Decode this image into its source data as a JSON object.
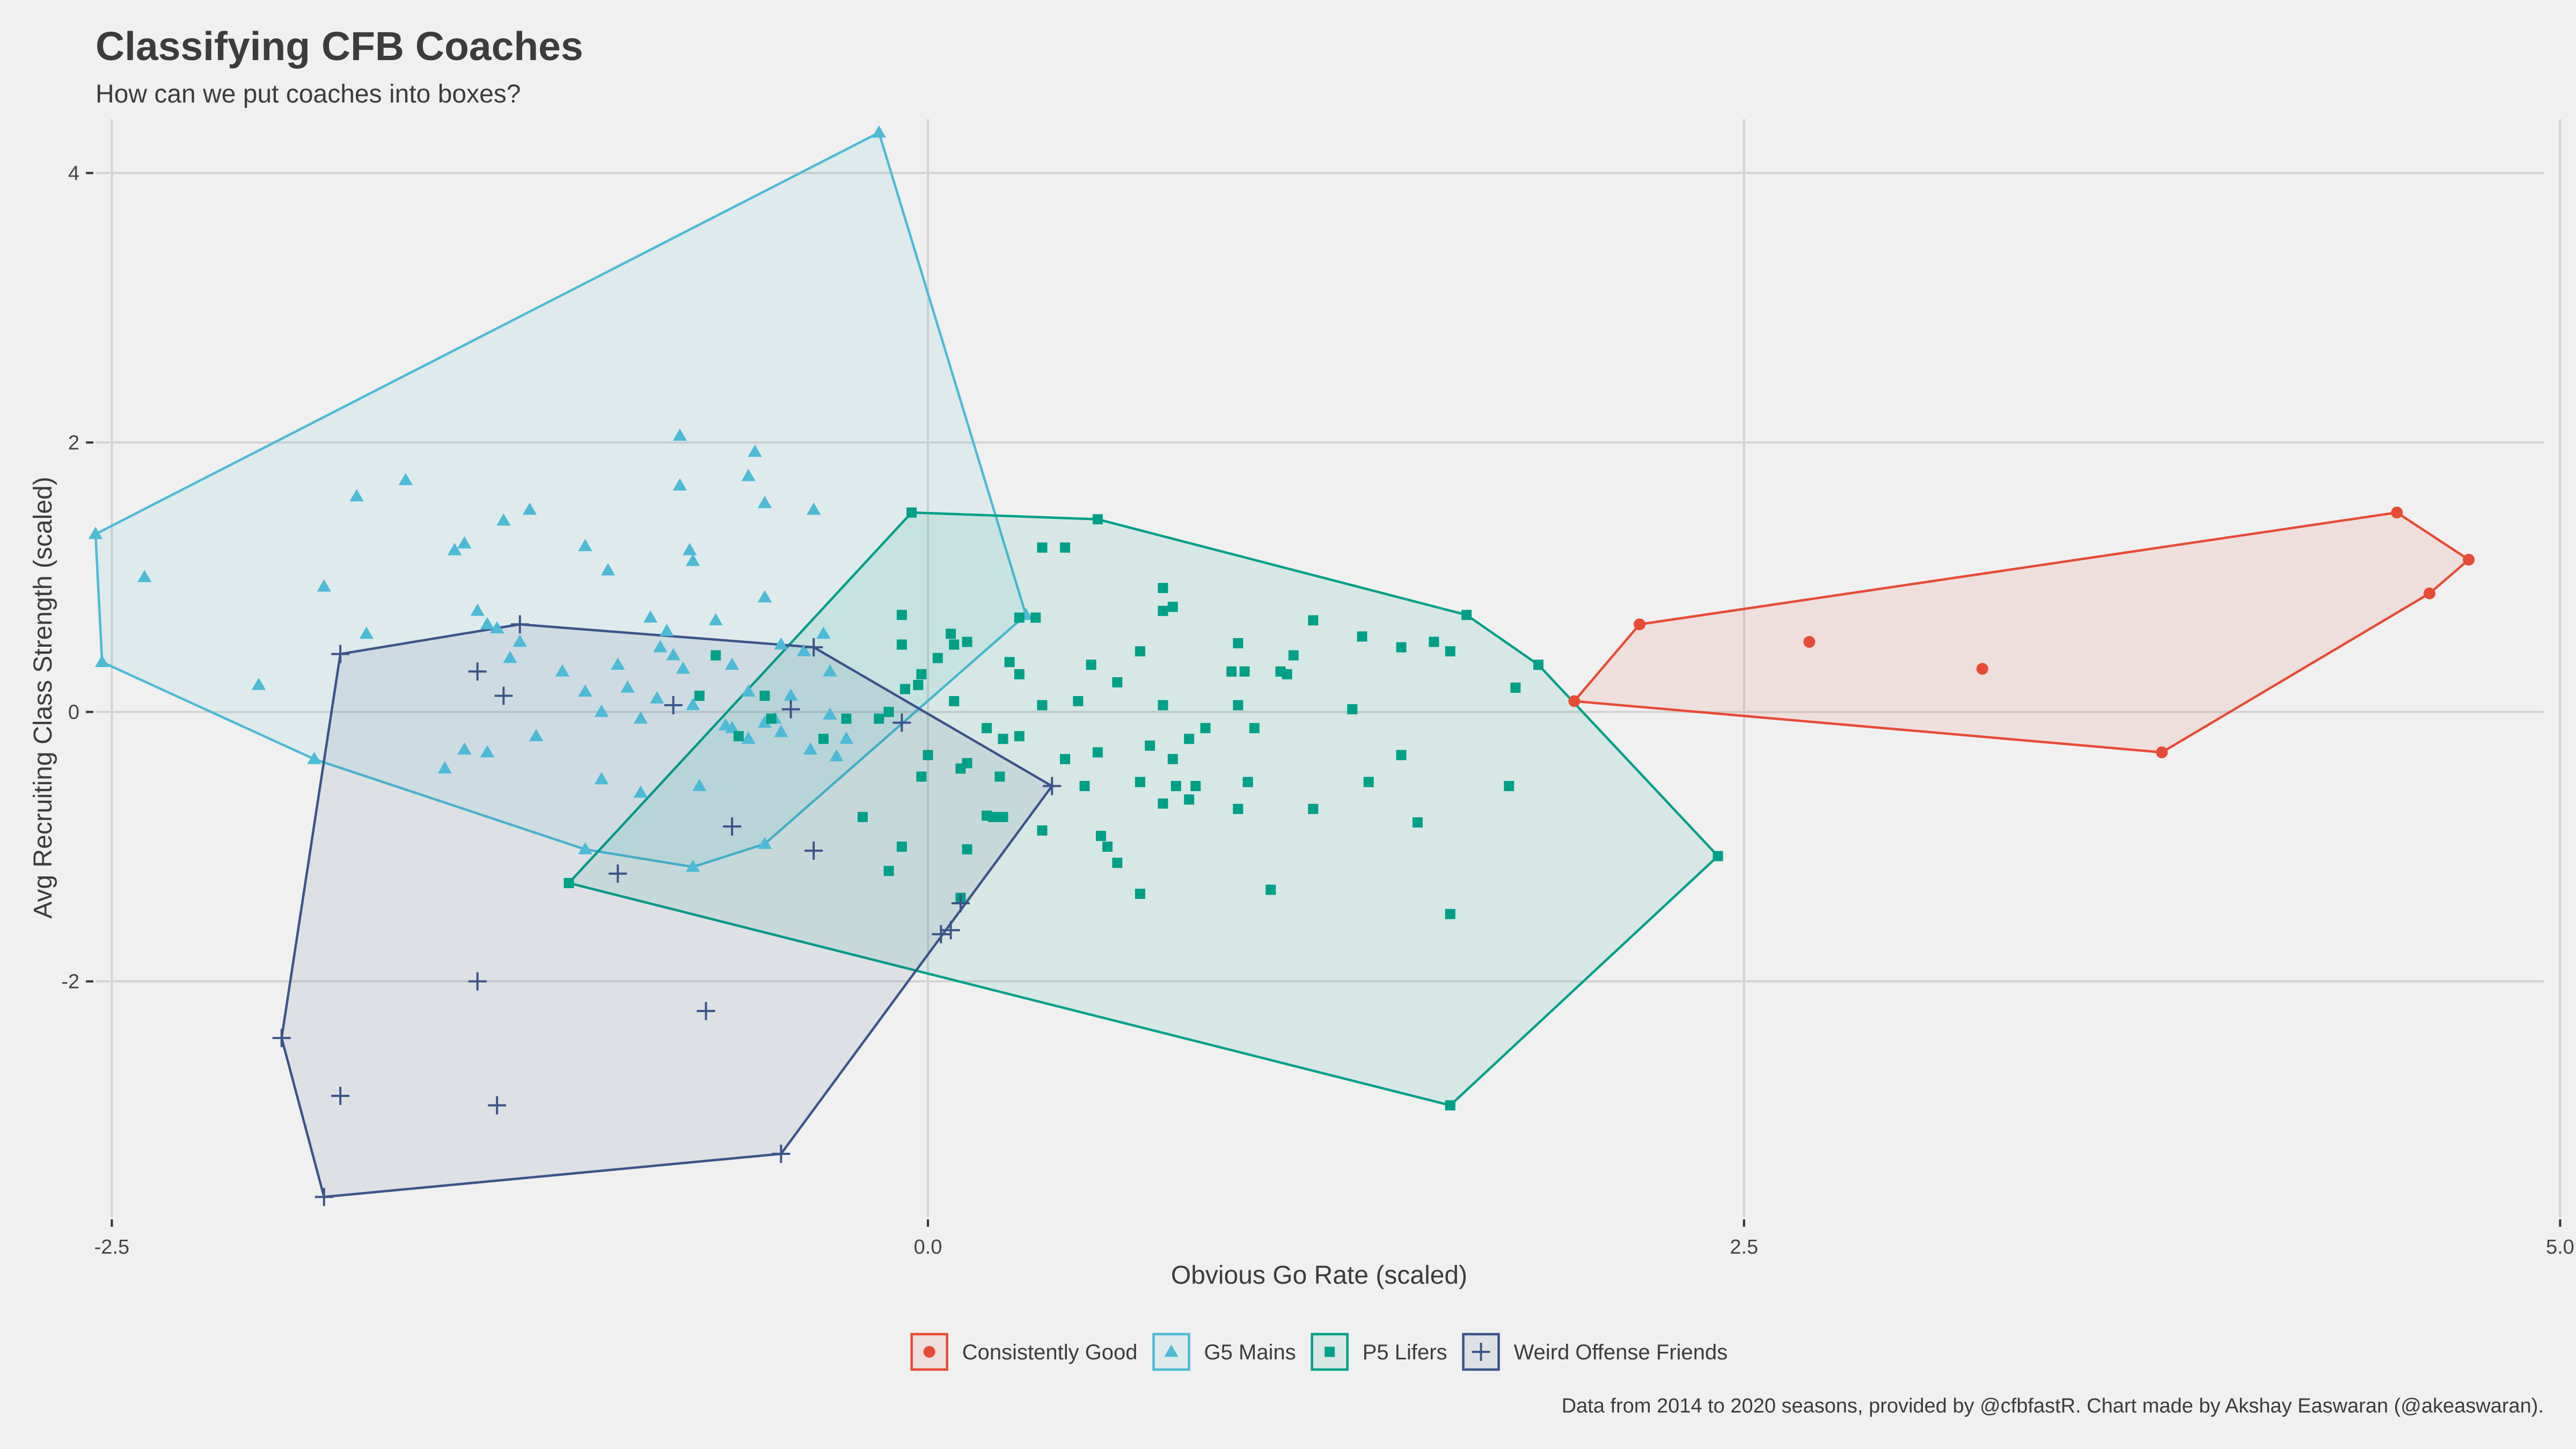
{
  "title": "Classifying CFB Coaches",
  "subtitle": "How can we put coaches into boxes?",
  "caption": "Data from 2014 to 2020 seasons, provided by @cfbfastR. Chart made by Akshay Easwaran (@akeaswaran).",
  "chart_data": {
    "type": "scatter",
    "title": "Classifying CFB Coaches",
    "subtitle": "How can we put coaches into boxes?",
    "xlabel": "Obvious Go Rate (scaled)",
    "ylabel": "Avg Recruiting Class Strength (scaled)",
    "xlim": [
      -2.55,
      4.95
    ],
    "ylim": [
      -3.75,
      4.4
    ],
    "x_ticks": [
      -2.5,
      0.0,
      2.5,
      5.0
    ],
    "x_tick_labels": [
      "-2.5",
      "0.0",
      "2.5",
      "5.0"
    ],
    "y_ticks": [
      -2,
      0,
      2,
      4
    ],
    "y_tick_labels": [
      "-2",
      "0",
      "2",
      "4"
    ],
    "grid": true,
    "legend_position": "bottom",
    "series": [
      {
        "name": "Consistently Good",
        "color": "#e64b35",
        "shape": "circle",
        "points": [
          [
            2.18,
            0.65
          ],
          [
            2.7,
            0.52
          ],
          [
            3.23,
            0.32
          ],
          [
            3.78,
            -0.3
          ],
          [
            4.5,
            1.48
          ],
          [
            4.6,
            0.88
          ],
          [
            4.72,
            1.13
          ],
          [
            1.98,
            0.08
          ]
        ],
        "hull": [
          [
            1.98,
            0.08
          ],
          [
            2.18,
            0.65
          ],
          [
            4.5,
            1.48
          ],
          [
            4.72,
            1.13
          ],
          [
            4.6,
            0.88
          ],
          [
            3.78,
            -0.3
          ]
        ]
      },
      {
        "name": "G5 Mains",
        "color": "#4dbbd5",
        "shape": "triangle",
        "points": [
          [
            -2.55,
            1.32
          ],
          [
            -2.53,
            0.37
          ],
          [
            -0.15,
            4.3
          ],
          [
            0.3,
            0.72
          ],
          [
            -0.5,
            -0.98
          ],
          [
            -0.72,
            -1.15
          ],
          [
            -1.05,
            -1.02
          ],
          [
            -1.88,
            -0.35
          ],
          [
            -2.4,
            1.0
          ],
          [
            -2.05,
            0.2
          ],
          [
            -1.85,
            0.93
          ],
          [
            -1.75,
            1.6
          ],
          [
            -1.6,
            1.72
          ],
          [
            -1.72,
            0.58
          ],
          [
            -1.45,
            1.2
          ],
          [
            -1.42,
            1.25
          ],
          [
            -1.38,
            0.75
          ],
          [
            -1.3,
            1.42
          ],
          [
            -1.22,
            1.5
          ],
          [
            -1.05,
            1.23
          ],
          [
            -0.98,
            1.05
          ],
          [
            -0.85,
            0.7
          ],
          [
            -0.8,
            0.6
          ],
          [
            -0.76,
            2.05
          ],
          [
            -0.76,
            1.68
          ],
          [
            -0.73,
            1.2
          ],
          [
            -0.72,
            1.12
          ],
          [
            -0.55,
            1.75
          ],
          [
            -0.53,
            1.93
          ],
          [
            -0.5,
            1.55
          ],
          [
            -0.35,
            1.5
          ],
          [
            -0.5,
            0.85
          ],
          [
            -0.65,
            0.68
          ],
          [
            -0.6,
            0.35
          ],
          [
            -0.95,
            0.35
          ],
          [
            -1.0,
            -0.5
          ],
          [
            -0.88,
            -0.6
          ],
          [
            -0.7,
            -0.55
          ],
          [
            -1.12,
            0.3
          ],
          [
            -1.2,
            -0.18
          ],
          [
            -1.25,
            0.52
          ],
          [
            -1.35,
            -0.3
          ],
          [
            -1.42,
            -0.28
          ],
          [
            -1.48,
            -0.42
          ],
          [
            -1.32,
            0.62
          ],
          [
            -1.28,
            0.4
          ],
          [
            -1.35,
            0.65
          ],
          [
            -0.92,
            0.18
          ],
          [
            -0.75,
            0.32
          ],
          [
            -0.82,
            0.48
          ],
          [
            -0.78,
            0.42
          ],
          [
            -1.05,
            0.15
          ],
          [
            -0.25,
            -0.2
          ],
          [
            -0.28,
            -0.33
          ],
          [
            -0.36,
            -0.28
          ],
          [
            -0.45,
            -0.15
          ],
          [
            -0.55,
            -0.2
          ],
          [
            -0.6,
            -0.12
          ],
          [
            -0.5,
            -0.08
          ],
          [
            -0.32,
            0.58
          ],
          [
            -0.45,
            0.5
          ],
          [
            -0.3,
            0.3
          ],
          [
            -0.38,
            0.45
          ],
          [
            -0.55,
            0.15
          ],
          [
            -0.72,
            0.05
          ],
          [
            -0.83,
            0.1
          ],
          [
            -0.88,
            -0.05
          ],
          [
            -1.0,
            0.0
          ],
          [
            -0.3,
            -0.02
          ],
          [
            -0.62,
            -0.1
          ],
          [
            -0.42,
            0.12
          ],
          [
            -0.47,
            -0.05
          ]
        ],
        "hull": [
          [
            -2.55,
            1.32
          ],
          [
            -0.15,
            4.3
          ],
          [
            0.3,
            0.72
          ],
          [
            -0.5,
            -0.98
          ],
          [
            -0.72,
            -1.15
          ],
          [
            -1.05,
            -1.02
          ],
          [
            -1.88,
            -0.35
          ],
          [
            -2.53,
            0.37
          ]
        ]
      },
      {
        "name": "P5 Lifers",
        "color": "#00a087",
        "shape": "square",
        "points": [
          [
            -0.05,
            1.48
          ],
          [
            0.52,
            1.43
          ],
          [
            1.65,
            0.72
          ],
          [
            1.87,
            0.35
          ],
          [
            2.42,
            -1.07
          ],
          [
            1.6,
            -2.92
          ],
          [
            -1.1,
            -1.27
          ],
          [
            -0.03,
            0.2
          ],
          [
            0.33,
            0.7
          ],
          [
            0.35,
            1.22
          ],
          [
            0.42,
            1.22
          ],
          [
            0.72,
            0.92
          ],
          [
            0.75,
            0.78
          ],
          [
            0.72,
            0.75
          ],
          [
            0.65,
            0.45
          ],
          [
            0.5,
            0.35
          ],
          [
            0.58,
            0.22
          ],
          [
            0.46,
            0.08
          ],
          [
            0.35,
            0.05
          ],
          [
            0.28,
            0.28
          ],
          [
            0.25,
            0.37
          ],
          [
            0.72,
            0.05
          ],
          [
            0.93,
            0.3
          ],
          [
            0.95,
            0.51
          ],
          [
            1.12,
            0.42
          ],
          [
            1.18,
            0.68
          ],
          [
            1.33,
            0.56
          ],
          [
            1.45,
            0.48
          ],
          [
            1.55,
            0.52
          ],
          [
            1.6,
            0.45
          ],
          [
            1.8,
            0.18
          ],
          [
            1.3,
            0.02
          ],
          [
            1.45,
            -0.32
          ],
          [
            1.35,
            -0.52
          ],
          [
            1.78,
            -0.55
          ],
          [
            1.5,
            -0.82
          ],
          [
            1.6,
            -1.5
          ],
          [
            1.05,
            -1.32
          ],
          [
            1.18,
            -0.72
          ],
          [
            0.95,
            -0.72
          ],
          [
            0.98,
            -0.52
          ],
          [
            0.82,
            -0.55
          ],
          [
            0.76,
            -0.55
          ],
          [
            0.8,
            -0.65
          ],
          [
            0.72,
            -0.68
          ],
          [
            0.65,
            -0.52
          ],
          [
            0.68,
            -0.25
          ],
          [
            0.75,
            -0.35
          ],
          [
            0.8,
            -0.2
          ],
          [
            0.85,
            -0.12
          ],
          [
            0.95,
            0.05
          ],
          [
            1.0,
            -0.12
          ],
          [
            0.52,
            -0.3
          ],
          [
            0.42,
            -0.35
          ],
          [
            0.48,
            -0.55
          ],
          [
            0.53,
            -0.92
          ],
          [
            0.55,
            -1.0
          ],
          [
            0.65,
            -1.35
          ],
          [
            0.58,
            -1.12
          ],
          [
            0.35,
            -0.88
          ],
          [
            0.28,
            -0.18
          ],
          [
            0.22,
            -0.48
          ],
          [
            0.23,
            -0.2
          ],
          [
            0.18,
            -0.12
          ],
          [
            0.18,
            -0.77
          ],
          [
            0.2,
            -0.78
          ],
          [
            0.23,
            -0.78
          ],
          [
            0.1,
            -0.42
          ],
          [
            0.12,
            -0.38
          ],
          [
            0.12,
            -1.02
          ],
          [
            0.1,
            -1.38
          ],
          [
            0.0,
            -0.32
          ],
          [
            -0.02,
            -0.48
          ],
          [
            -0.08,
            -1.0
          ],
          [
            -0.12,
            -1.18
          ],
          [
            -0.2,
            -0.78
          ],
          [
            -0.15,
            -0.05
          ],
          [
            -0.12,
            0.0
          ],
          [
            -0.08,
            0.72
          ],
          [
            -0.08,
            0.5
          ],
          [
            -0.07,
            0.17
          ],
          [
            -0.02,
            0.28
          ],
          [
            0.07,
            0.58
          ],
          [
            0.08,
            0.5
          ],
          [
            0.08,
            0.08
          ],
          [
            0.12,
            0.52
          ],
          [
            -0.65,
            0.42
          ],
          [
            -0.7,
            0.12
          ],
          [
            -0.5,
            0.12
          ],
          [
            -0.48,
            -0.05
          ],
          [
            -0.58,
            -0.18
          ],
          [
            -0.32,
            -0.2
          ],
          [
            -0.25,
            -0.05
          ],
          [
            0.28,
            0.7
          ],
          [
            0.03,
            0.4
          ],
          [
            1.1,
            0.28
          ],
          [
            1.08,
            0.3
          ],
          [
            0.97,
            0.3
          ]
        ],
        "hull": [
          [
            -0.05,
            1.48
          ],
          [
            0.52,
            1.43
          ],
          [
            1.65,
            0.72
          ],
          [
            1.87,
            0.35
          ],
          [
            2.42,
            -1.07
          ],
          [
            1.6,
            -2.92
          ],
          [
            -1.1,
            -1.27
          ]
        ]
      },
      {
        "name": "Weird Offense Friends",
        "color": "#3c5488",
        "shape": "plus",
        "points": [
          [
            -1.25,
            0.65
          ],
          [
            -0.35,
            0.48
          ],
          [
            0.38,
            -0.55
          ],
          [
            -0.45,
            -3.28
          ],
          [
            -1.85,
            -3.6
          ],
          [
            -1.98,
            -2.42
          ],
          [
            -1.8,
            0.43
          ],
          [
            -1.38,
            0.3
          ],
          [
            -1.3,
            0.12
          ],
          [
            -0.78,
            0.05
          ],
          [
            -0.42,
            0.02
          ],
          [
            -0.08,
            -0.08
          ],
          [
            -0.6,
            -0.85
          ],
          [
            -0.35,
            -1.03
          ],
          [
            -0.95,
            -1.2
          ],
          [
            0.04,
            -1.65
          ],
          [
            0.07,
            -1.62
          ],
          [
            0.1,
            -1.42
          ],
          [
            -1.38,
            -2.0
          ],
          [
            -0.68,
            -2.22
          ],
          [
            -1.8,
            -2.85
          ],
          [
            -1.32,
            -2.92
          ]
        ],
        "hull": [
          [
            -1.25,
            0.65
          ],
          [
            -0.35,
            0.48
          ],
          [
            0.38,
            -0.55
          ],
          [
            -0.45,
            -3.28
          ],
          [
            -1.85,
            -3.6
          ],
          [
            -1.98,
            -2.42
          ],
          [
            -1.8,
            0.43
          ]
        ]
      }
    ]
  }
}
